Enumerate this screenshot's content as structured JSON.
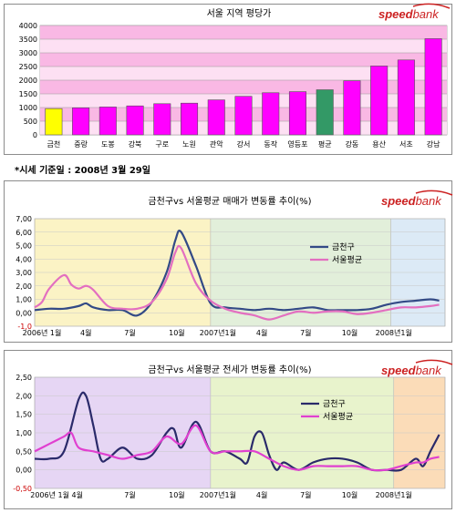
{
  "brand": {
    "logo_text_bold": "speed",
    "logo_text_light": "bank",
    "logo_color": "#cc2222"
  },
  "note": "*시세 기준일 : 2008년 3월 29일",
  "chart_data": [
    {
      "type": "bar",
      "title": "서울 지역 평당가",
      "categories": [
        "금천",
        "중랑",
        "도봉",
        "강북",
        "구로",
        "노원",
        "관악",
        "강서",
        "동작",
        "영등포",
        "평균",
        "강동",
        "용산",
        "서초",
        "강남"
      ],
      "values": [
        960,
        990,
        1020,
        1060,
        1140,
        1160,
        1280,
        1410,
        1540,
        1580,
        1650,
        1980,
        2520,
        2740,
        3520
      ],
      "colors": [
        "#ffff00",
        "#ff00ff",
        "#ff00ff",
        "#ff00ff",
        "#ff00ff",
        "#ff00ff",
        "#ff00ff",
        "#ff00ff",
        "#ff00ff",
        "#ff00ff",
        "#339966",
        "#ff00ff",
        "#ff00ff",
        "#ff00ff",
        "#ff00ff"
      ],
      "ylim": [
        0,
        4000
      ],
      "yticks": [
        0,
        500,
        1000,
        1500,
        2000,
        2500,
        3000,
        3500,
        4000
      ],
      "ytick_labels": [
        "0",
        "500",
        "1000",
        "1500",
        "2000",
        "2500",
        "3000",
        "3500",
        "4000"
      ],
      "background_bands": "pink",
      "grid": true
    },
    {
      "type": "line",
      "title": "금천구vs 서울평균 매매가 변동률 추이(%)",
      "x_range": [
        0,
        28
      ],
      "ylim": [
        -1.0,
        7.0
      ],
      "yticks": [
        -1.0,
        0.0,
        1.0,
        2.0,
        3.0,
        4.0,
        5.0,
        6.0,
        7.0
      ],
      "ytick_labels": [
        "-1,0",
        "0,00",
        "1,00",
        "2,00",
        "3,00",
        "4,00",
        "5,00",
        "6,00",
        "7,00"
      ],
      "xticks": [
        {
          "x": 0.5,
          "label": "2006년 1월"
        },
        {
          "x": 3.5,
          "label": "4월"
        },
        {
          "x": 6.5,
          "label": "7월"
        },
        {
          "x": 9.7,
          "label": "10월"
        },
        {
          "x": 12.5,
          "label": "2007년1월"
        },
        {
          "x": 15.5,
          "label": "4월"
        },
        {
          "x": 18.5,
          "label": "7월"
        },
        {
          "x": 21.5,
          "label": "10월"
        },
        {
          "x": 24.5,
          "label": "2008년1월"
        }
      ],
      "regions": [
        {
          "from": 0,
          "to": 12,
          "color": "#fbf3c5"
        },
        {
          "from": 12,
          "to": 24.3,
          "color": "#e2efda"
        },
        {
          "from": 24.3,
          "to": 28,
          "color": "#dceaf6"
        }
      ],
      "legend": "right-middle",
      "series": [
        {
          "name": "금천구",
          "color": "#334a86",
          "x": [
            0,
            1,
            2,
            3,
            3.5,
            4,
            5,
            6,
            7,
            8,
            9,
            9.6,
            10,
            11,
            12,
            13,
            14,
            15,
            16,
            17,
            18,
            19,
            20,
            21,
            22,
            23,
            24,
            25,
            26,
            27,
            27.6
          ],
          "values": [
            0.2,
            0.3,
            0.3,
            0.5,
            0.7,
            0.4,
            0.2,
            0.2,
            -0.2,
            0.8,
            3.0,
            5.4,
            6.0,
            3.5,
            0.7,
            0.4,
            0.3,
            0.2,
            0.3,
            0.2,
            0.3,
            0.4,
            0.2,
            0.2,
            0.2,
            0.3,
            0.6,
            0.8,
            0.9,
            1.0,
            0.9
          ]
        },
        {
          "name": "서울평균",
          "color": "#e36fc0",
          "x": [
            0,
            0.5,
            1,
            2,
            2.5,
            3,
            3.5,
            4,
            5,
            6,
            7,
            8,
            9,
            9.6,
            10,
            11,
            12,
            13,
            14,
            15,
            16,
            17,
            18,
            19,
            20,
            21,
            22,
            23,
            24,
            25,
            26,
            27,
            27.6
          ],
          "values": [
            0.4,
            0.8,
            1.8,
            2.8,
            2.1,
            1.8,
            2.0,
            1.7,
            0.5,
            0.3,
            0.3,
            0.8,
            2.5,
            4.5,
            4.8,
            2.2,
            0.9,
            0.3,
            0.0,
            -0.2,
            -0.5,
            -0.2,
            0.1,
            0.0,
            0.1,
            0.1,
            -0.1,
            0.0,
            0.2,
            0.4,
            0.4,
            0.5,
            0.6
          ]
        }
      ]
    },
    {
      "type": "line",
      "title": "금천구vs 서울평균 전세가 변동률 추이(%)",
      "x_range": [
        0,
        28
      ],
      "ylim": [
        -0.5,
        2.5
      ],
      "yticks": [
        -0.5,
        0.0,
        0.5,
        1.0,
        1.5,
        2.0,
        2.5
      ],
      "ytick_labels": [
        "-0,50",
        "0,00",
        "0,50",
        "1,00",
        "1,50",
        "2,00",
        "2,50"
      ],
      "xticks": [
        {
          "x": 1.5,
          "label": "2006년 1월 4월"
        },
        {
          "x": 6.5,
          "label": "7월"
        },
        {
          "x": 9.7,
          "label": "10월"
        },
        {
          "x": 12.5,
          "label": "2007년1월"
        },
        {
          "x": 15.5,
          "label": "4월"
        },
        {
          "x": 18.5,
          "label": "7월"
        },
        {
          "x": 21.5,
          "label": "10월"
        },
        {
          "x": 24.5,
          "label": "2008년1월"
        }
      ],
      "regions": [
        {
          "from": 0,
          "to": 12,
          "color": "#e6d6f4"
        },
        {
          "from": 12,
          "to": 24.5,
          "color": "#e8f3cc"
        },
        {
          "from": 24.5,
          "to": 28,
          "color": "#fbdcb8"
        }
      ],
      "legend": "center",
      "series": [
        {
          "name": "금천구",
          "color": "#2a2a6a",
          "x": [
            0,
            1,
            2,
            3,
            3.5,
            4,
            4.5,
            5,
            6,
            7,
            8,
            9,
            9.5,
            10,
            11,
            12,
            13,
            14,
            14.5,
            15,
            15.5,
            16,
            16.5,
            17,
            18,
            19,
            20,
            21,
            22,
            23,
            24,
            25,
            26,
            26.5,
            27,
            27.6
          ],
          "values": [
            0.3,
            0.3,
            0.5,
            1.9,
            2.0,
            1.2,
            0.3,
            0.3,
            0.6,
            0.3,
            0.4,
            1.0,
            1.1,
            0.6,
            1.3,
            0.5,
            0.5,
            0.3,
            0.2,
            0.9,
            1.0,
            0.4,
            0.0,
            0.2,
            0.0,
            0.2,
            0.3,
            0.3,
            0.2,
            0.0,
            0.0,
            0.0,
            0.3,
            0.1,
            0.5,
            0.95
          ]
        },
        {
          "name": "서울평균",
          "color": "#e040d0",
          "x": [
            0,
            1,
            2,
            2.5,
            3,
            4,
            5,
            6,
            7,
            8,
            9,
            10,
            11,
            12,
            13,
            14,
            15,
            16,
            17,
            18,
            19,
            20,
            21,
            22,
            23,
            24,
            25,
            26,
            26.5,
            27,
            27.6
          ],
          "values": [
            0.5,
            0.7,
            0.9,
            1.0,
            0.6,
            0.5,
            0.4,
            0.3,
            0.4,
            0.5,
            0.9,
            0.7,
            1.2,
            0.5,
            0.5,
            0.5,
            0.5,
            0.3,
            0.1,
            0.0,
            0.1,
            0.1,
            0.1,
            0.1,
            0.0,
            0.0,
            0.1,
            0.2,
            0.2,
            0.3,
            0.35
          ]
        }
      ]
    }
  ]
}
